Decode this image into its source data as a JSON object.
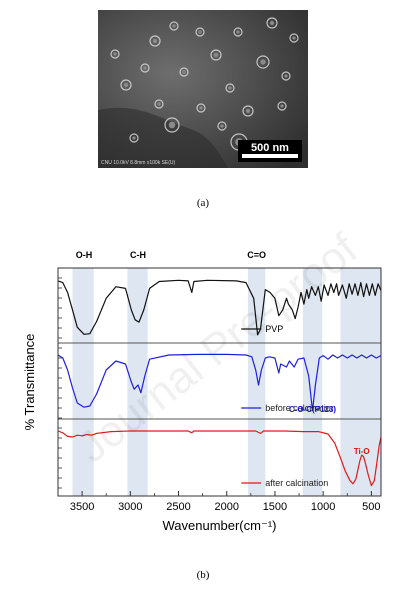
{
  "figure_a": {
    "caption": "(a)",
    "sem_meta": "CNU 10.0kV 8.8mm x100k SE(U)",
    "scale_bar": "500 nm"
  },
  "figure_b": {
    "caption": "(b)",
    "watermark": "Journal Pre-proof"
  },
  "chart_data": {
    "type": "line",
    "xlabel": "Wavenumber(cm⁻¹)",
    "ylabel": "% Transmittance",
    "xlim": [
      3750,
      400
    ],
    "x_ticks": [
      3500,
      3000,
      2500,
      2000,
      1500,
      1000,
      500
    ],
    "band_labels": [
      "O-H",
      "C-H",
      "C=O"
    ],
    "bands": [
      {
        "label": "O-H",
        "from": 3600,
        "to": 3380
      },
      {
        "label": "C-H",
        "from": 3030,
        "to": 2820
      },
      {
        "label": "C=O",
        "from": 1780,
        "to": 1600
      },
      {
        "label": "",
        "from": 1210,
        "to": 1010
      },
      {
        "label": "",
        "from": 820,
        "to": 400
      }
    ],
    "annotations": [
      {
        "text": "C-O-C(P123)",
        "color": "#1a1acc"
      },
      {
        "text": "Ti-O",
        "color": "#dd1111"
      }
    ],
    "colors": {
      "band": "#dde6f1",
      "pvp": "#111111",
      "before": "#1f1fe0",
      "after": "#e01b1b"
    },
    "series": [
      {
        "name": "PVP",
        "values": [
          [
            3750,
            0.05
          ],
          [
            3700,
            0.08
          ],
          [
            3650,
            0.25
          ],
          [
            3600,
            0.55
          ],
          [
            3550,
            0.85
          ],
          [
            3480,
            0.97
          ],
          [
            3420,
            0.96
          ],
          [
            3350,
            0.75
          ],
          [
            3250,
            0.35
          ],
          [
            3150,
            0.15
          ],
          [
            3050,
            0.18
          ],
          [
            2990,
            0.55
          ],
          [
            2950,
            0.72
          ],
          [
            2910,
            0.76
          ],
          [
            2860,
            0.55
          ],
          [
            2800,
            0.18
          ],
          [
            2700,
            0.06
          ],
          [
            2500,
            0.04
          ],
          [
            2400,
            0.05
          ],
          [
            2362,
            0.25
          ],
          [
            2340,
            0.06
          ],
          [
            2200,
            0.04
          ],
          [
            1900,
            0.05
          ],
          [
            1800,
            0.08
          ],
          [
            1720,
            0.35
          ],
          [
            1680,
            0.98
          ],
          [
            1650,
            0.88
          ],
          [
            1600,
            0.2
          ],
          [
            1550,
            0.25
          ],
          [
            1500,
            0.35
          ],
          [
            1460,
            0.65
          ],
          [
            1420,
            0.55
          ],
          [
            1380,
            0.35
          ],
          [
            1360,
            0.45
          ],
          [
            1320,
            0.55
          ],
          [
            1290,
            0.7
          ],
          [
            1260,
            0.5
          ],
          [
            1230,
            0.25
          ],
          [
            1200,
            0.45
          ],
          [
            1170,
            0.2
          ],
          [
            1150,
            0.35
          ],
          [
            1120,
            0.15
          ],
          [
            1080,
            0.3
          ],
          [
            1050,
            0.15
          ],
          [
            1020,
            0.4
          ],
          [
            990,
            0.12
          ],
          [
            950,
            0.3
          ],
          [
            920,
            0.1
          ],
          [
            890,
            0.25
          ],
          [
            860,
            0.1
          ],
          [
            840,
            0.3
          ],
          [
            800,
            0.12
          ],
          [
            760,
            0.35
          ],
          [
            730,
            0.1
          ],
          [
            700,
            0.28
          ],
          [
            670,
            0.1
          ],
          [
            640,
            0.3
          ],
          [
            610,
            0.08
          ],
          [
            580,
            0.32
          ],
          [
            550,
            0.1
          ],
          [
            520,
            0.3
          ],
          [
            490,
            0.1
          ],
          [
            460,
            0.3
          ],
          [
            430,
            0.1
          ],
          [
            400,
            0.22
          ]
        ]
      },
      {
        "name": "before calcination",
        "values": [
          [
            3750,
            0.05
          ],
          [
            3700,
            0.1
          ],
          [
            3650,
            0.3
          ],
          [
            3600,
            0.6
          ],
          [
            3550,
            0.85
          ],
          [
            3480,
            0.92
          ],
          [
            3420,
            0.9
          ],
          [
            3350,
            0.7
          ],
          [
            3250,
            0.3
          ],
          [
            3150,
            0.15
          ],
          [
            3050,
            0.2
          ],
          [
            2990,
            0.5
          ],
          [
            2960,
            0.62
          ],
          [
            2920,
            0.55
          ],
          [
            2890,
            0.68
          ],
          [
            2850,
            0.4
          ],
          [
            2800,
            0.12
          ],
          [
            2600,
            0.05
          ],
          [
            2300,
            0.04
          ],
          [
            2000,
            0.04
          ],
          [
            1800,
            0.05
          ],
          [
            1740,
            0.08
          ],
          [
            1700,
            0.3
          ],
          [
            1670,
            0.55
          ],
          [
            1640,
            0.3
          ],
          [
            1600,
            0.1
          ],
          [
            1560,
            0.08
          ],
          [
            1500,
            0.1
          ],
          [
            1460,
            0.35
          ],
          [
            1440,
            0.2
          ],
          [
            1380,
            0.25
          ],
          [
            1350,
            0.15
          ],
          [
            1300,
            0.25
          ],
          [
            1260,
            0.12
          ],
          [
            1200,
            0.1
          ],
          [
            1150,
            0.4
          ],
          [
            1110,
            0.98
          ],
          [
            1080,
            0.55
          ],
          [
            1040,
            0.1
          ],
          [
            1000,
            0.06
          ],
          [
            950,
            0.12
          ],
          [
            900,
            0.05
          ],
          [
            850,
            0.1
          ],
          [
            800,
            0.05
          ],
          [
            750,
            0.1
          ],
          [
            700,
            0.05
          ],
          [
            650,
            0.1
          ],
          [
            600,
            0.05
          ],
          [
            550,
            0.1
          ],
          [
            500,
            0.05
          ],
          [
            450,
            0.1
          ],
          [
            400,
            0.06
          ]
        ]
      },
      {
        "name": "after calcination",
        "values": [
          [
            3750,
            0.05
          ],
          [
            3700,
            0.08
          ],
          [
            3650,
            0.14
          ],
          [
            3600,
            0.15
          ],
          [
            3550,
            0.12
          ],
          [
            3500,
            0.13
          ],
          [
            3450,
            0.11
          ],
          [
            3400,
            0.12
          ],
          [
            3350,
            0.09
          ],
          [
            3300,
            0.08
          ],
          [
            3200,
            0.06
          ],
          [
            3000,
            0.05
          ],
          [
            2800,
            0.05
          ],
          [
            2400,
            0.05
          ],
          [
            2362,
            0.08
          ],
          [
            2340,
            0.05
          ],
          [
            2000,
            0.05
          ],
          [
            1700,
            0.05
          ],
          [
            1650,
            0.09
          ],
          [
            1620,
            0.05
          ],
          [
            1400,
            0.05
          ],
          [
            1200,
            0.06
          ],
          [
            1050,
            0.06
          ],
          [
            950,
            0.1
          ],
          [
            880,
            0.25
          ],
          [
            820,
            0.5
          ],
          [
            770,
            0.72
          ],
          [
            720,
            0.88
          ],
          [
            690,
            0.93
          ],
          [
            660,
            0.85
          ],
          [
            620,
            0.55
          ],
          [
            600,
            0.45
          ],
          [
            580,
            0.48
          ],
          [
            560,
            0.6
          ],
          [
            530,
            0.8
          ],
          [
            500,
            0.96
          ],
          [
            470,
            0.88
          ],
          [
            440,
            0.55
          ],
          [
            420,
            0.3
          ],
          [
            400,
            0.15
          ]
        ]
      }
    ]
  }
}
